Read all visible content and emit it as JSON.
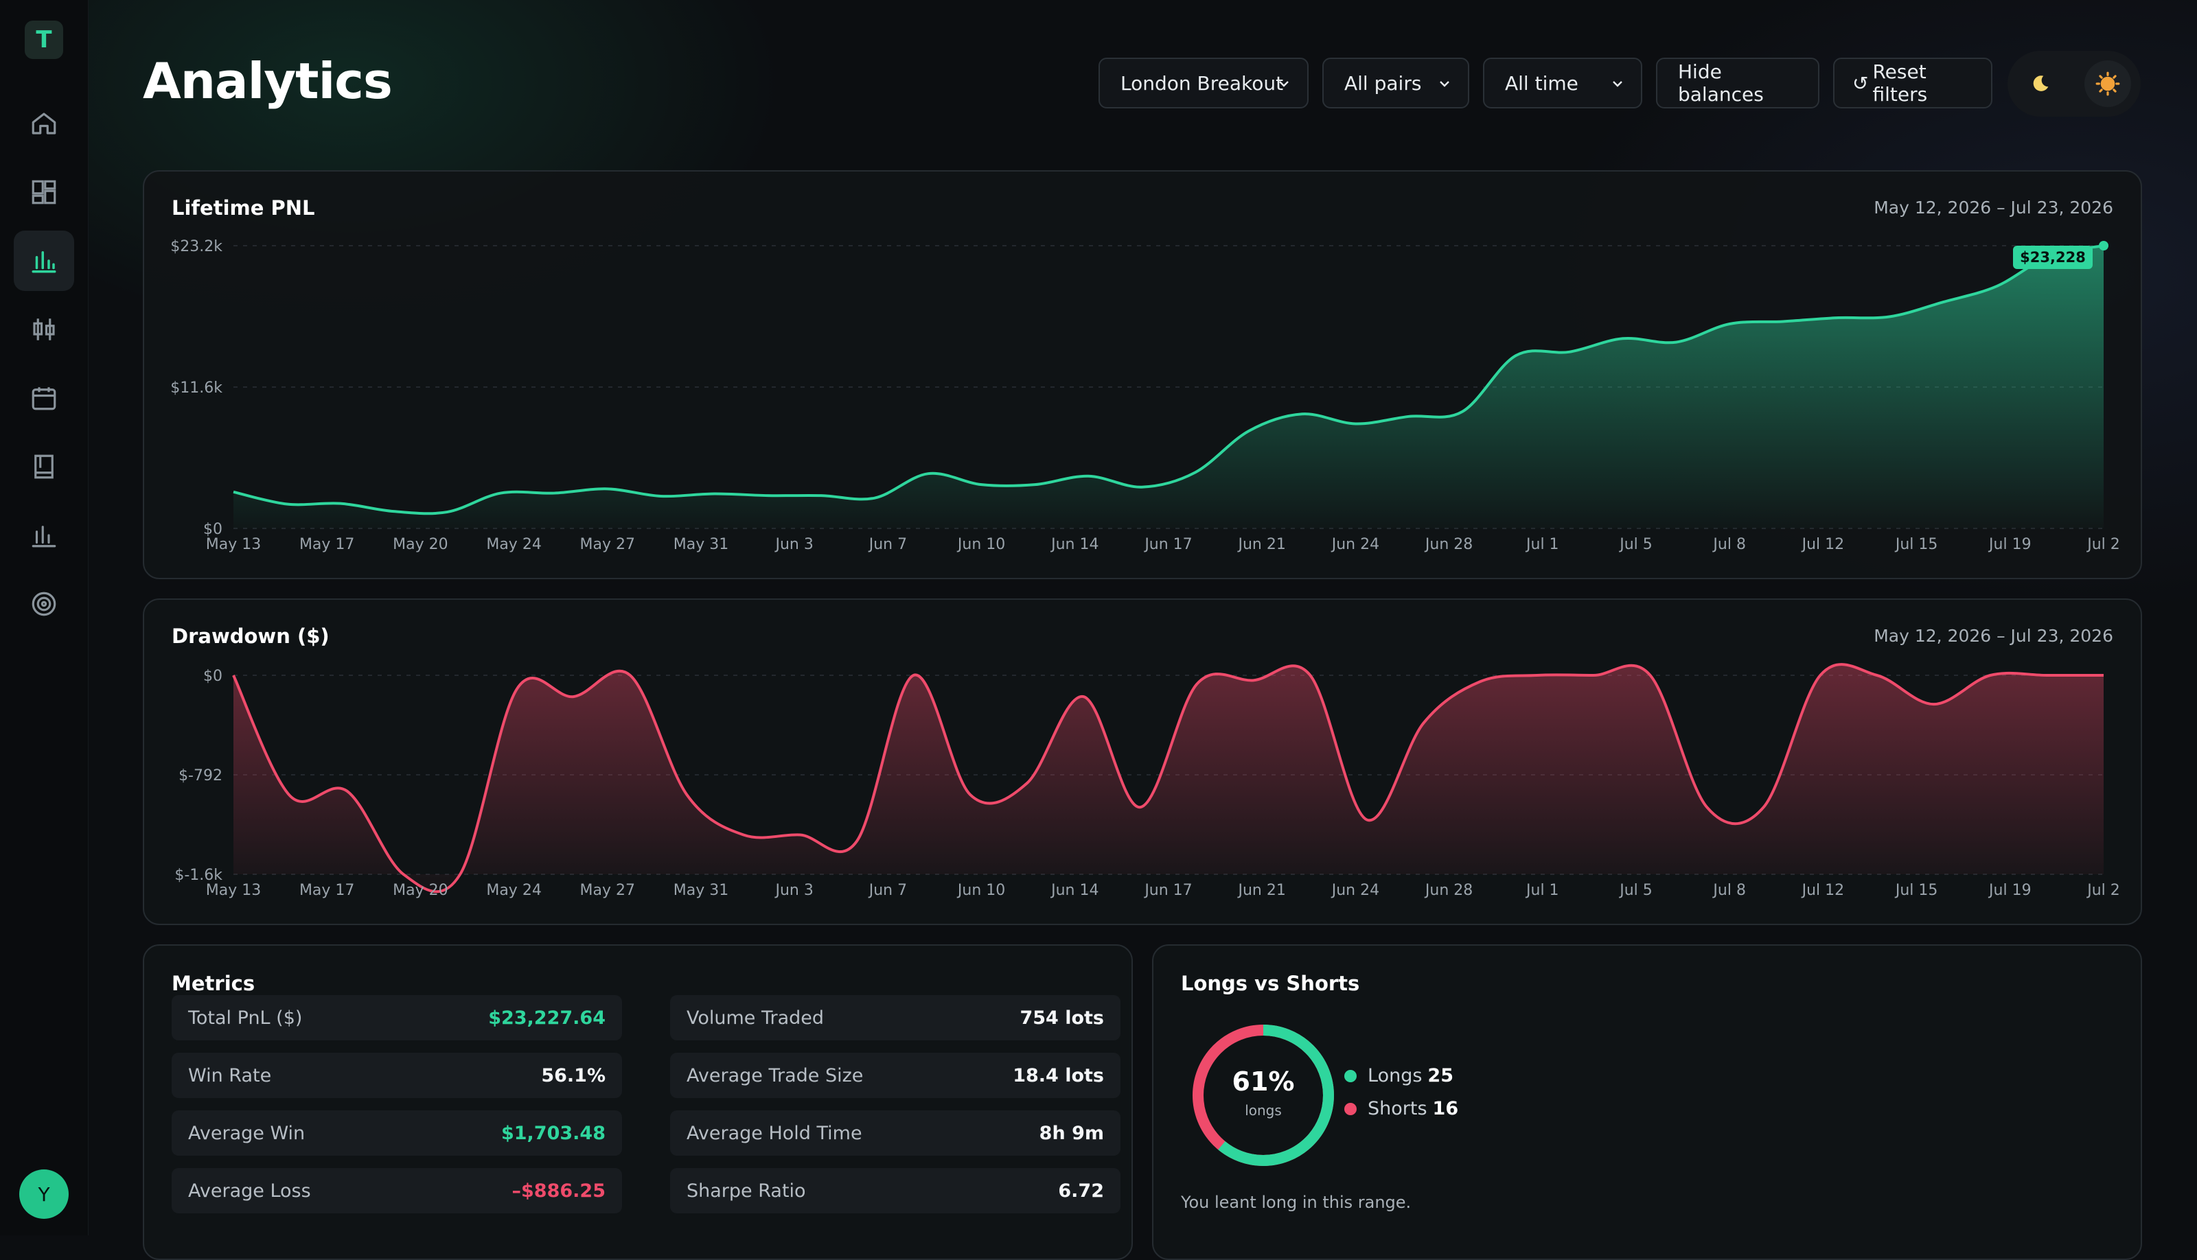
{
  "app": {
    "logo_letter": "T",
    "user_initial": "Y"
  },
  "sidebar": {
    "items": [
      {
        "name": "home",
        "icon": "home-icon"
      },
      {
        "name": "dashboard",
        "icon": "dashboard-icon"
      },
      {
        "name": "analytics",
        "icon": "bar-chart-icon",
        "active": true
      },
      {
        "name": "trades",
        "icon": "candlestick-icon"
      },
      {
        "name": "calendar",
        "icon": "calendar-icon"
      },
      {
        "name": "journal",
        "icon": "notebook-icon"
      },
      {
        "name": "reports",
        "icon": "bar-chart-icon"
      },
      {
        "name": "goals",
        "icon": "target-icon"
      }
    ]
  },
  "header": {
    "title": "Analytics",
    "filters": {
      "strategy": "London Breakout",
      "pairs": "All pairs",
      "period": "All time"
    },
    "hide_balances_label": "Hide balances",
    "reset_filters_label": "Reset filters",
    "reset_icon_glyph": "↺",
    "theme": {
      "dark_icon": "moon-icon",
      "light_icon": "sun-icon"
    }
  },
  "lifetime_pnl": {
    "title": "Lifetime PNL",
    "range": "May 12, 2026 – Jul 23, 2026",
    "end_badge": "$23,228",
    "chart_data": {
      "type": "area",
      "y_tick_labels": [
        "$23.2k",
        "$11.6k",
        "$0"
      ],
      "ylim": [
        0,
        23228
      ],
      "x_tick_labels": [
        "May 13",
        "May 17",
        "May 20",
        "May 24",
        "May 27",
        "May 31",
        "Jun 3",
        "Jun 7",
        "Jun 10",
        "Jun 14",
        "Jun 17",
        "Jun 21",
        "Jun 24",
        "Jun 28",
        "Jul 1",
        "Jul 5",
        "Jul 8",
        "Jul 12",
        "Jul 15",
        "Jul 19",
        "Jul 2"
      ],
      "grid": true,
      "color": "#2fd69d",
      "series": [
        {
          "values": [
            3000,
            2000,
            2050,
            1400,
            1350,
            2900,
            2900,
            3250,
            2650,
            2850,
            2700,
            2700,
            2500,
            4500,
            3600,
            3600,
            4300,
            3400,
            4600,
            8000,
            9400,
            8600,
            9200,
            9600,
            14200,
            14500,
            15600,
            15300,
            16800,
            17000,
            17300,
            17400,
            18600,
            19900,
            22400,
            23228
          ]
        }
      ]
    }
  },
  "drawdown": {
    "title": "Drawdown ($)",
    "range": "May 12, 2026 – Jul 23, 2026",
    "chart_data": {
      "type": "area",
      "y_tick_labels": [
        "$0",
        "$-792",
        "$-1.6k"
      ],
      "ylim": [
        -1584,
        0
      ],
      "x_tick_labels": [
        "May 13",
        "May 17",
        "May 20",
        "May 24",
        "May 27",
        "May 31",
        "Jun 3",
        "Jun 7",
        "Jun 10",
        "Jun 14",
        "Jun 17",
        "Jun 21",
        "Jun 24",
        "Jun 28",
        "Jul 1",
        "Jul 5",
        "Jul 8",
        "Jul 12",
        "Jul 15",
        "Jul 19",
        "Jul 2"
      ],
      "grid": true,
      "color": "#ef4b6b",
      "series": [
        {
          "values": [
            0,
            -960,
            -920,
            -1584,
            -1584,
            -110,
            -170,
            0,
            -950,
            -1270,
            -1270,
            -1320,
            0,
            -950,
            -860,
            -170,
            -1050,
            -70,
            -40,
            0,
            -1150,
            -380,
            -50,
            0,
            0,
            0,
            -1050,
            -1050,
            0,
            0,
            -230,
            0,
            0,
            0
          ]
        }
      ]
    }
  },
  "metrics": {
    "title": "Metrics",
    "left": [
      {
        "label": "Total PnL ($)",
        "value": "$23,227.64",
        "tone": "pos"
      },
      {
        "label": "Win Rate",
        "value": "56.1%",
        "tone": ""
      },
      {
        "label": "Average Win",
        "value": "$1,703.48",
        "tone": "pos"
      },
      {
        "label": "Average Loss",
        "value": "–$886.25",
        "tone": "neg"
      }
    ],
    "right": [
      {
        "label": "Volume Traded",
        "value": "754 lots",
        "tone": ""
      },
      {
        "label": "Average Trade Size",
        "value": "18.4 lots",
        "tone": ""
      },
      {
        "label": "Average Hold Time",
        "value": "8h 9m",
        "tone": ""
      },
      {
        "label": "Sharpe Ratio",
        "value": "6.72",
        "tone": ""
      }
    ]
  },
  "longs_shorts": {
    "title": "Longs vs Shorts",
    "center_value": "61%",
    "center_label": "longs",
    "longs_label": "Longs",
    "longs_count": 25,
    "shorts_label": "Shorts",
    "shorts_count": 16,
    "long_fraction": 0.61,
    "colors": {
      "longs": "#2fd69d",
      "shorts": "#ef4b6b"
    },
    "note": "You leant long in this range."
  }
}
